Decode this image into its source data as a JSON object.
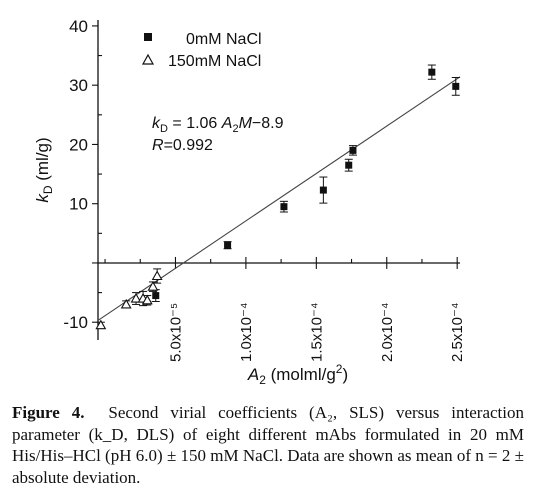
{
  "chart_data": {
    "type": "scatter",
    "xlabel": "A2 (molml/g2)",
    "ylabel": "kD (ml/g)",
    "xlim": [
      -5e-06,
      0.000252
    ],
    "ylim": [
      -13,
      41
    ],
    "yticks": [
      {
        "value": 40,
        "label": "40"
      },
      {
        "value": 30,
        "label": "30"
      },
      {
        "value": 20,
        "label": "20"
      },
      {
        "value": 10,
        "label": "10"
      },
      {
        "value": -10,
        "label": "-10"
      }
    ],
    "xticks": [
      {
        "value": 5e-05,
        "label": "5.0x10⁻⁵"
      },
      {
        "value": 0.0001,
        "label": "1.0x10⁻⁴"
      },
      {
        "value": 0.00015,
        "label": "1.5x10⁻⁴"
      },
      {
        "value": 0.0002,
        "label": "2.0x10⁻⁴"
      },
      {
        "value": 0.00025,
        "label": "2.5x10⁻⁴"
      }
    ],
    "grid": false,
    "legend_position": "top-left",
    "series": [
      {
        "name": "0mM NaCl",
        "marker": "filled-square",
        "points": [
          {
            "x": 3.6e-05,
            "y": -5.5,
            "err": 1.0
          },
          {
            "x": 8.7e-05,
            "y": 3.0,
            "err": 0.6
          },
          {
            "x": 0.000127,
            "y": 9.5,
            "err": 0.9
          },
          {
            "x": 0.000155,
            "y": 12.3,
            "err": 2.2
          },
          {
            "x": 0.000173,
            "y": 16.5,
            "err": 1.0
          },
          {
            "x": 0.000176,
            "y": 19.0,
            "err": 0.8
          },
          {
            "x": 0.000232,
            "y": 32.2,
            "err": 1.2
          },
          {
            "x": 0.000249,
            "y": 29.8,
            "err": 1.5
          }
        ]
      },
      {
        "name": "150mM NaCl",
        "marker": "open-triangle",
        "points": [
          {
            "x": -3e-06,
            "y": -10.5,
            "err": 0.5
          },
          {
            "x": 1.5e-05,
            "y": -7.0,
            "err": 0.6
          },
          {
            "x": 2.2e-05,
            "y": -6.0,
            "err": 1.0
          },
          {
            "x": 2.7e-05,
            "y": -6.0,
            "err": 1.2
          },
          {
            "x": 3e-05,
            "y": -6.3,
            "err": 0.8
          },
          {
            "x": 3.4e-05,
            "y": -4.0,
            "err": 0.8
          },
          {
            "x": 3.7e-05,
            "y": -2.2,
            "err": 1.2
          }
        ]
      }
    ],
    "fit": {
      "slope": 160000,
      "intercept": -8.9,
      "x_range": [
        -5e-06,
        0.000252
      ]
    },
    "annotations": {
      "equation": "k_D = 1.06 A_2 M−8.9",
      "r": "R=0.992"
    }
  },
  "caption": {
    "label": "Figure 4.",
    "text": "Second virial coefficients (A₂, SLS) versus interaction parameter (k_D, DLS) of eight different mAbs formulated in 20 mM His/His–HCl (pH 6.0) ± 150 mM NaCl. Data are shown as mean of n = 2 ± absolute deviation."
  }
}
